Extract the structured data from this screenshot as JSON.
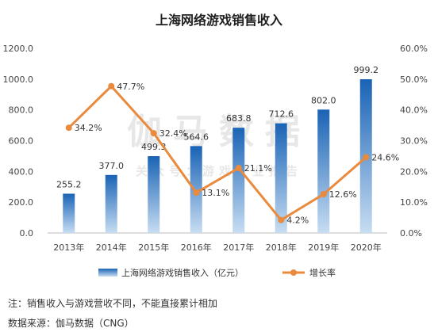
{
  "title": "上海网络游戏销售收入",
  "watermark": {
    "main": "伽马数据",
    "sub": "关众号：游戏产业报告"
  },
  "note": "注：销售收入与游戏营收不同，不能直接累计相加",
  "source": "数据来源：伽马数据（CNG）",
  "colors": {
    "bar_top": "#1a63b5",
    "bar_bottom": "#c7ddf2",
    "line": "#e98a3c"
  },
  "chart_data": {
    "type": "bar+line",
    "title": "上海网络游戏销售收入",
    "categories": [
      "2013年",
      "2014年",
      "2015年",
      "2016年",
      "2017年",
      "2018年",
      "2019年",
      "2020年"
    ],
    "series": [
      {
        "name": "上海网络游戏销售收入（亿元）",
        "type": "bar",
        "axis": "left",
        "values": [
          255.2,
          377.0,
          499.3,
          564.6,
          683.8,
          712.6,
          802.0,
          999.2
        ],
        "labels": [
          "255.2",
          "377.0",
          "499.3",
          "564.6",
          "683.8",
          "712.6",
          "802.0",
          "999.2"
        ]
      },
      {
        "name": "增长率",
        "type": "line",
        "axis": "right",
        "values": [
          34.2,
          47.7,
          32.4,
          13.1,
          21.1,
          4.2,
          12.6,
          24.6
        ],
        "labels": [
          "34.2%",
          "47.7%",
          "32.4%",
          "13.1%",
          "21.1%",
          "4.2%",
          "12.6%",
          "24.6%"
        ]
      }
    ],
    "y_left": {
      "ylim": [
        0,
        1200
      ],
      "ticks": [
        "0.0",
        "200.0",
        "400.0",
        "600.0",
        "800.0",
        "1000.0",
        "1200.0"
      ]
    },
    "y_right": {
      "ylim": [
        0,
        60
      ],
      "ticks": [
        "0.0%",
        "10.0%",
        "20.0%",
        "30.0%",
        "40.0%",
        "50.0%",
        "60.0%"
      ]
    },
    "grid": false,
    "legend": "bottom"
  }
}
